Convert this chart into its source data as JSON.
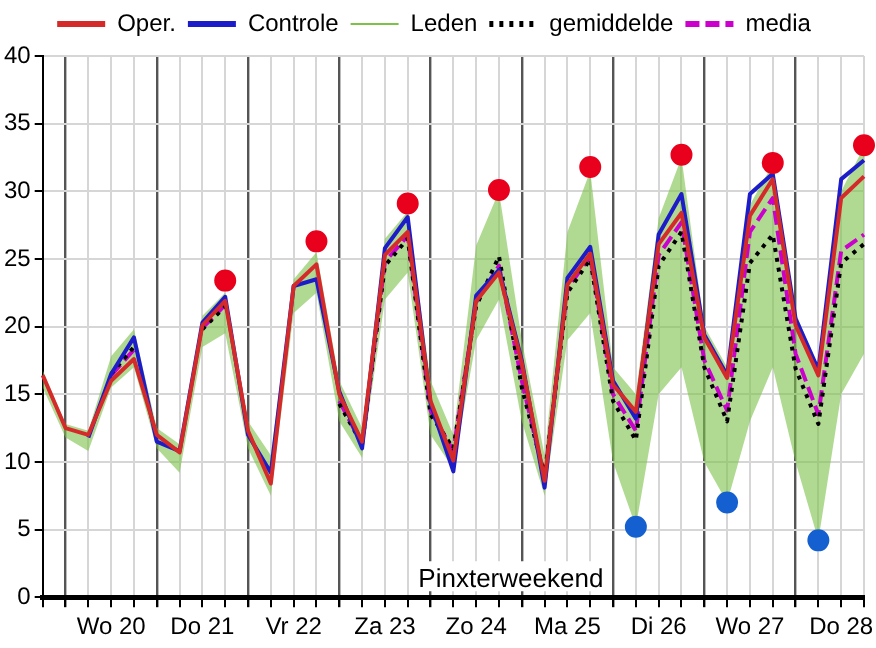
{
  "chart_data": {
    "type": "line",
    "categories": [
      null,
      null,
      null,
      "Wo 20",
      null,
      null,
      null,
      "Do 21",
      null,
      null,
      null,
      "Vr 22",
      null,
      null,
      null,
      "Za 23",
      null,
      null,
      null,
      "Zo 24",
      null,
      null,
      null,
      "Ma 25",
      null,
      null,
      null,
      "Di 26",
      null,
      null,
      null,
      "Wo 27",
      null,
      null,
      null,
      "Do 28",
      null
    ],
    "series": [
      {
        "name": "Oper.",
        "color": "#d42a2a",
        "line_style": "solid",
        "marker": "none",
        "values": [
          16.4,
          12.5,
          12.0,
          16.0,
          17.6,
          12.0,
          10.7,
          20.1,
          21.9,
          12.3,
          8.4,
          23.0,
          24.6,
          15.0,
          11.5,
          25.3,
          27.0,
          14.5,
          10.1,
          21.9,
          24.0,
          17.3,
          8.6,
          23.1,
          25.4,
          15.7,
          13.7,
          26.1,
          28.4,
          19.2,
          16.2,
          28.2,
          30.9,
          20.1,
          16.4,
          29.5,
          31.1
        ]
      },
      {
        "name": "Controle",
        "color": "#1c1cc8",
        "line_style": "solid",
        "marker": "none",
        "values": [
          null,
          null,
          11.8,
          16.5,
          19.2,
          11.5,
          10.8,
          20.3,
          22.2,
          12.0,
          9.2,
          23.0,
          23.5,
          15.2,
          11.0,
          25.8,
          28.1,
          14.3,
          9.3,
          22.3,
          24.2,
          17.5,
          8.1,
          23.6,
          25.9,
          16.0,
          13.2,
          26.8,
          29.8,
          19.4,
          16.4,
          29.8,
          31.3,
          20.6,
          16.8,
          30.9,
          32.3
        ]
      },
      {
        "name": "Leden",
        "color": "#7cc24a",
        "line_style": "solid",
        "marker": "none",
        "values": [
          null,
          null,
          null,
          null,
          null,
          null,
          null,
          null,
          null,
          null,
          null,
          null,
          null,
          null,
          null,
          null,
          null,
          null,
          null,
          null,
          null,
          null,
          null,
          null,
          null,
          null,
          null,
          null,
          null,
          null,
          null,
          null,
          null,
          null,
          null,
          null,
          null
        ],
        "lower": [
          15.5,
          11.8,
          10.8,
          15.5,
          17,
          11,
          9.2,
          18.5,
          19.5,
          11,
          7.5,
          21,
          22.5,
          13,
          10.3,
          22,
          24,
          12,
          9.5,
          19,
          22,
          13,
          7.5,
          19,
          21,
          10,
          5.2,
          15,
          17,
          10,
          7,
          13,
          17,
          10,
          4.2,
          15,
          18
        ],
        "upper": [
          16.8,
          12.8,
          12.3,
          17.8,
          19.8,
          12.5,
          11.3,
          20.8,
          22.5,
          13,
          10.5,
          23.5,
          25.5,
          16,
          12.5,
          26.5,
          28.5,
          16,
          12,
          26,
          30,
          19,
          10.5,
          27,
          31.5,
          17,
          15,
          28,
          32.5,
          20,
          17,
          29,
          32,
          21,
          17,
          30,
          33.3
        ]
      },
      {
        "name": "gemiddelde",
        "color": "#000000",
        "line_style": "dotted",
        "marker": "none",
        "values": [
          null,
          null,
          null,
          16.5,
          18.5,
          null,
          null,
          19.8,
          21.5,
          null,
          null,
          null,
          null,
          14.3,
          11.3,
          24.5,
          26.5,
          13.5,
          11.0,
          21.5,
          25.2,
          15.5,
          9.0,
          22.5,
          25.0,
          14.5,
          11.6,
          24.5,
          27.0,
          17.0,
          13.0,
          24.7,
          26.8,
          16.9,
          12.8,
          24.7,
          26.1
        ]
      },
      {
        "name": "media",
        "color": "#cc00cc",
        "line_style": "dashed",
        "marker": "none",
        "values": [
          null,
          null,
          null,
          16.4,
          18.3,
          null,
          null,
          19.9,
          21.6,
          null,
          null,
          null,
          null,
          14.5,
          11.3,
          24.8,
          26.7,
          13.8,
          10.8,
          21.8,
          24.5,
          16.0,
          8.8,
          22.8,
          25.2,
          15.0,
          12.3,
          25.3,
          27.7,
          17.5,
          13.8,
          27.0,
          29.5,
          18.0,
          13.5,
          25.6,
          26.8
        ]
      },
      {
        "type": "scatter",
        "color": "#e8001c",
        "marker": "circle",
        "values": [
          null,
          null,
          null,
          null,
          null,
          null,
          null,
          null,
          23.4,
          null,
          null,
          null,
          26.3,
          null,
          null,
          null,
          29.1,
          null,
          null,
          null,
          30.1,
          null,
          null,
          null,
          31.8,
          null,
          null,
          null,
          32.7,
          null,
          null,
          null,
          32.1,
          null,
          null,
          null,
          33.4
        ]
      },
      {
        "type": "scatter",
        "color": "#1560d0",
        "marker": "circle",
        "values": [
          null,
          null,
          null,
          null,
          null,
          null,
          null,
          null,
          null,
          null,
          null,
          null,
          null,
          null,
          null,
          null,
          null,
          null,
          null,
          null,
          null,
          null,
          null,
          null,
          null,
          null,
          5.2,
          null,
          null,
          null,
          7.0,
          null,
          null,
          null,
          4.2,
          null,
          null
        ]
      }
    ],
    "ylim": [
      0,
      40
    ],
    "yticks": [
      0,
      5,
      10,
      15,
      20,
      25,
      30,
      35,
      40
    ],
    "grid": true,
    "legend": "top",
    "annotations": [
      "Pinxterweekend"
    ]
  }
}
